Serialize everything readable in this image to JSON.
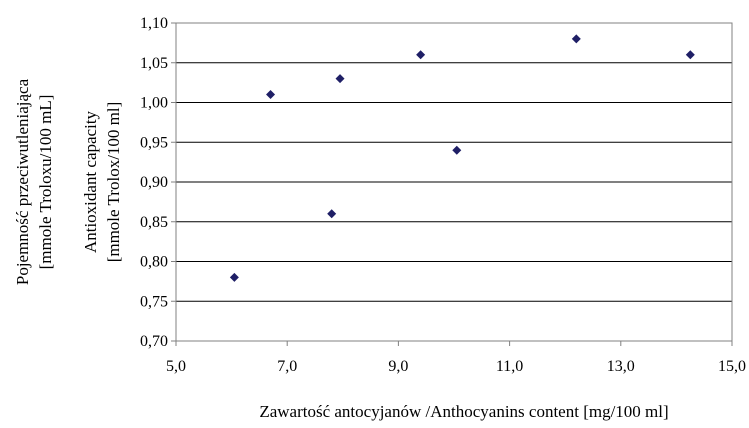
{
  "chart_data": {
    "type": "scatter",
    "title": "",
    "xlabel": "Zawartość antocyjanów /Anthocyanins content [mg/100 ml]",
    "ylabel_lines": [
      "Pojemność przeciwutleniająca",
      "[mmole Troloxu/100 mL]",
      "Antioxidant capacity",
      "[mmole Trolox/100 ml]"
    ],
    "xlim": [
      5.0,
      15.0
    ],
    "ylim": [
      0.7,
      1.1
    ],
    "xticks": [
      "5,0",
      "7,0",
      "9,0",
      "11,0",
      "13,0",
      "15,0"
    ],
    "yticks": [
      "0,70",
      "0,75",
      "0,80",
      "0,85",
      "0,90",
      "0,95",
      "1,00",
      "1,05",
      "1,10"
    ],
    "grid": "horizontal",
    "marker": "diamond",
    "marker_color": "#1f1f66",
    "points": [
      {
        "x": 6.05,
        "y": 0.78
      },
      {
        "x": 6.7,
        "y": 1.01
      },
      {
        "x": 7.8,
        "y": 0.86
      },
      {
        "x": 7.95,
        "y": 1.03
      },
      {
        "x": 9.4,
        "y": 1.06
      },
      {
        "x": 10.05,
        "y": 0.94
      },
      {
        "x": 12.2,
        "y": 1.08
      },
      {
        "x": 14.25,
        "y": 1.06
      }
    ]
  }
}
